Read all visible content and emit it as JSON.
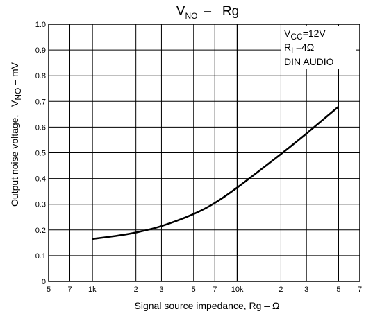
{
  "chart_data": {
    "type": "line",
    "title": {
      "main": "V",
      "sub": "NO",
      "rest": "–   Rg"
    },
    "xlabel": "Signal source impedance,   Rg – Ω",
    "ylabel": {
      "pre": "Output noise voltage,   V",
      "sub": "NO",
      "post": " – mV"
    },
    "xscale": "log",
    "xlim": [
      500,
      70000
    ],
    "ylim": [
      0,
      1.0
    ],
    "grid": true,
    "x_ticks": [
      {
        "value": 500,
        "label": "5"
      },
      {
        "value": 700,
        "label": "7"
      },
      {
        "value": 1000,
        "label": "1k"
      },
      {
        "value": 2000,
        "label": "2"
      },
      {
        "value": 3000,
        "label": "3"
      },
      {
        "value": 5000,
        "label": "5"
      },
      {
        "value": 7000,
        "label": "7"
      },
      {
        "value": 10000,
        "label": "10k"
      },
      {
        "value": 20000,
        "label": "2"
      },
      {
        "value": 30000,
        "label": "3"
      },
      {
        "value": 50000,
        "label": "5"
      },
      {
        "value": 70000,
        "label": "7"
      }
    ],
    "y_ticks": [
      "0",
      "0.1",
      "0.2",
      "0.3",
      "0.4",
      "0.5",
      "0.6",
      "0.7",
      "0.8",
      "0.9",
      "1.0"
    ],
    "annotation": [
      {
        "pre": "V",
        "sub": "CC",
        "post": "=12V"
      },
      {
        "pre": "R",
        "sub": "L",
        "post": "=4Ω"
      },
      {
        "pre": "DIN AUDIO",
        "sub": "",
        "post": ""
      }
    ],
    "series": [
      {
        "x": [
          1000,
          1500,
          2000,
          3000,
          5000,
          7000,
          10000,
          20000,
          30000,
          50000
        ],
        "values": [
          0.165,
          0.178,
          0.19,
          0.215,
          0.262,
          0.305,
          0.365,
          0.495,
          0.575,
          0.68
        ]
      }
    ]
  }
}
